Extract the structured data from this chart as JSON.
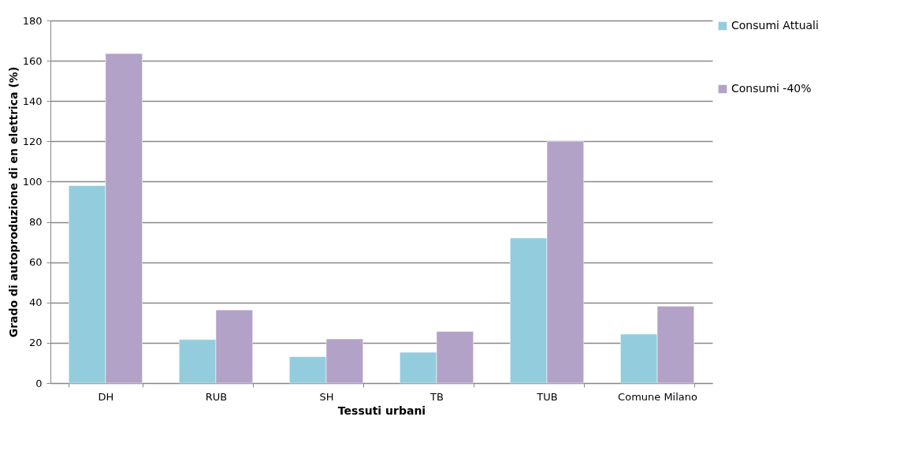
{
  "chart_data": {
    "type": "bar",
    "xlabel": "Tessuti urbani",
    "ylabel": "Grado di autoproduzione di en elettrica (%)",
    "categories": [
      "DH",
      "RUB",
      "SH",
      "TB",
      "TUB",
      "Comune Milano"
    ],
    "series": [
      {
        "name": "Consumi Attuali",
        "color": "#93cddd",
        "values": [
          98,
          21.6,
          13.1,
          15.3,
          72,
          24.3
        ]
      },
      {
        "name": "Consumi -40%",
        "color": "#b3a2c7",
        "values": [
          163.6,
          36.3,
          21.9,
          25.6,
          120,
          38.2
        ]
      }
    ],
    "ylim": [
      0,
      180
    ],
    "yticks": [
      0,
      20,
      40,
      60,
      80,
      100,
      120,
      140,
      160,
      180
    ],
    "grid": "y",
    "legend": "right"
  }
}
